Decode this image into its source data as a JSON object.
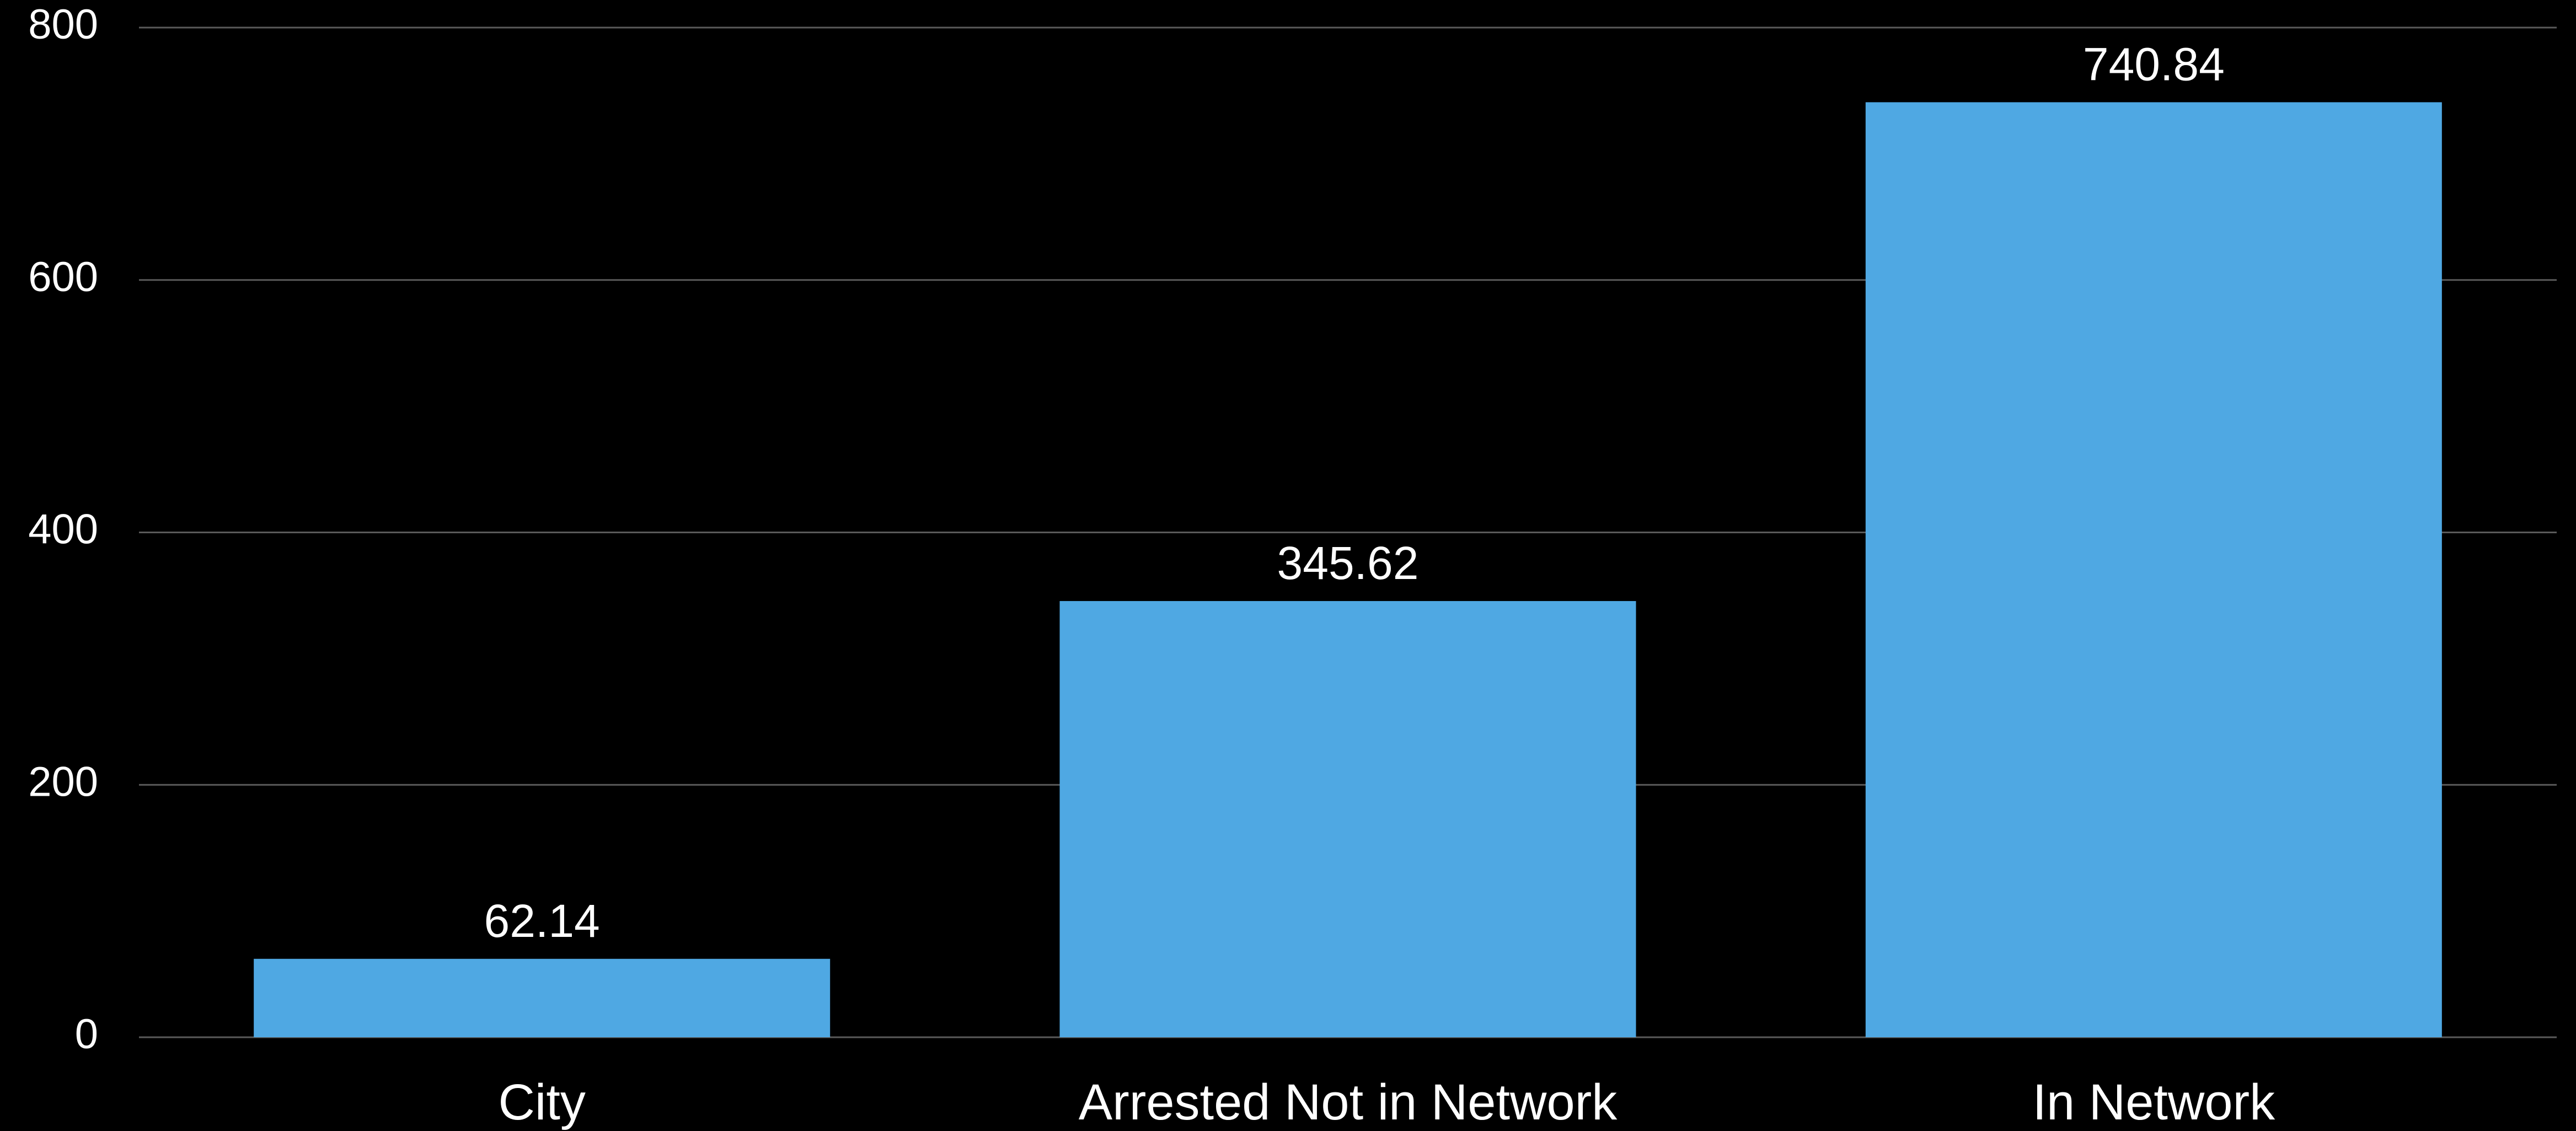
{
  "chart_data": {
    "type": "bar",
    "categories": [
      "City",
      "Arrested Not in Network",
      "In Network"
    ],
    "values": [
      62.14,
      345.62,
      740.84
    ],
    "data_labels": [
      "62.14",
      "345.62",
      "740.84"
    ],
    "y_ticks": [
      0,
      200,
      400,
      600,
      800
    ],
    "ylim": [
      0,
      800
    ],
    "grid": true,
    "bar_color": "#4fa8e3",
    "background_color": "#000000",
    "title": "",
    "xlabel": "",
    "ylabel": ""
  }
}
